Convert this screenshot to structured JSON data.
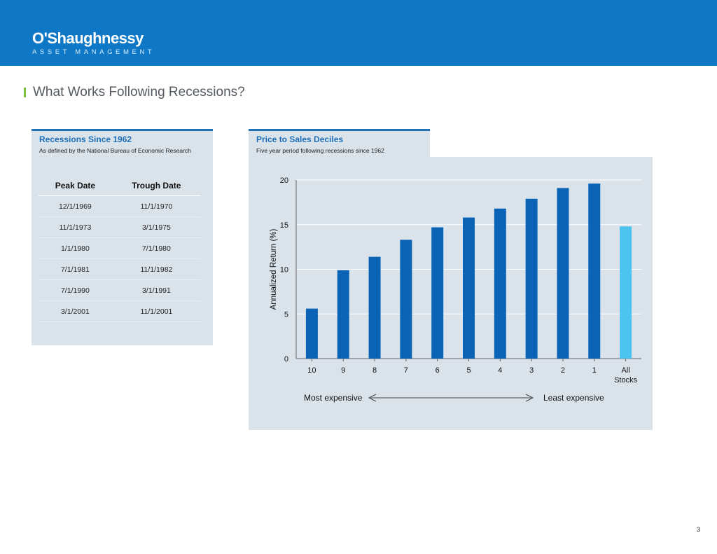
{
  "header": {
    "logo_name": "O'Shaughnessy",
    "logo_sub": "ASSET MANAGEMENT"
  },
  "page": {
    "title": "What Works Following Recessions?",
    "page_number": "3"
  },
  "recessions": {
    "title": "Recessions Since 1962",
    "subtitle": "As defined by the National Bureau of Economic Research",
    "columns": [
      "Peak Date",
      "Trough Date"
    ],
    "rows": [
      [
        "12/1/1969",
        "11/1/1970"
      ],
      [
        "11/1/1973",
        "3/1/1975"
      ],
      [
        "1/1/1980",
        "7/1/1980"
      ],
      [
        "7/1/1981",
        "11/1/1982"
      ],
      [
        "7/1/1990",
        "3/1/1991"
      ],
      [
        "3/1/2001",
        "11/1/2001"
      ]
    ]
  },
  "chart_panel": {
    "title": "Price to Sales Deciles",
    "subtitle": "Five year period following recessions since 1962"
  },
  "chart_data": {
    "type": "bar",
    "categories": [
      "10",
      "9",
      "8",
      "7",
      "6",
      "5",
      "4",
      "3",
      "2",
      "1",
      "All Stocks"
    ],
    "values": [
      5.6,
      9.9,
      11.4,
      13.3,
      14.7,
      15.8,
      16.8,
      17.9,
      19.1,
      19.6,
      14.8
    ],
    "highlight_index": 10,
    "ylabel": "Annualized Return (%)",
    "xlabel": "",
    "ylim": [
      0,
      20
    ],
    "yticks": [
      0,
      5,
      10,
      15,
      20
    ],
    "grid": true,
    "legend": "none",
    "colors": {
      "bar": "#0b63b5",
      "highlight": "#4dc3f0",
      "grid": "#ffffff"
    },
    "annotations": {
      "left": "Most expensive",
      "right": "Least expensive"
    }
  }
}
